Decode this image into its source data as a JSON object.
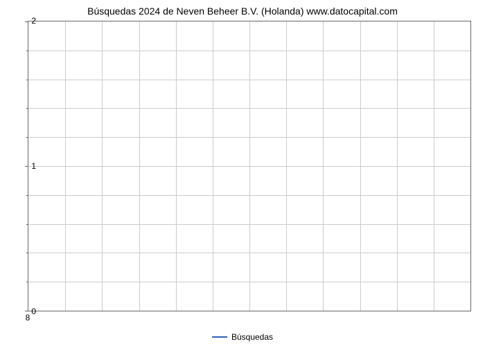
{
  "chart": {
    "type": "line",
    "title": "Búsquedas 2024 de Neven Beheer B.V. (Holanda) www.datocapital.com",
    "title_fontsize": 14,
    "title_color": "#000000",
    "background_color": "#ffffff",
    "plot_border_color": "#666666",
    "grid_color": "#cccccc",
    "x": {
      "ticks": [
        8
      ],
      "tick_labels": [
        "8"
      ],
      "n_vertical_gridlines": 12,
      "tick_fontsize": 12,
      "tick_color": "#000000"
    },
    "y": {
      "lim": [
        0,
        2
      ],
      "major_ticks": [
        0,
        1,
        2
      ],
      "major_labels": [
        "0",
        "1",
        "2"
      ],
      "minor_step": 0.2,
      "n_horizontal_gridlines": 10,
      "tick_fontsize": 12,
      "tick_color": "#000000"
    },
    "series": [
      {
        "name": "Búsquedas",
        "color": "#2b5fb4",
        "line_width": 2,
        "x": [],
        "y": []
      }
    ],
    "legend": {
      "position": "bottom-center",
      "label": "Búsquedas",
      "swatch_color": "#2b5fb4",
      "fontsize": 12
    }
  }
}
